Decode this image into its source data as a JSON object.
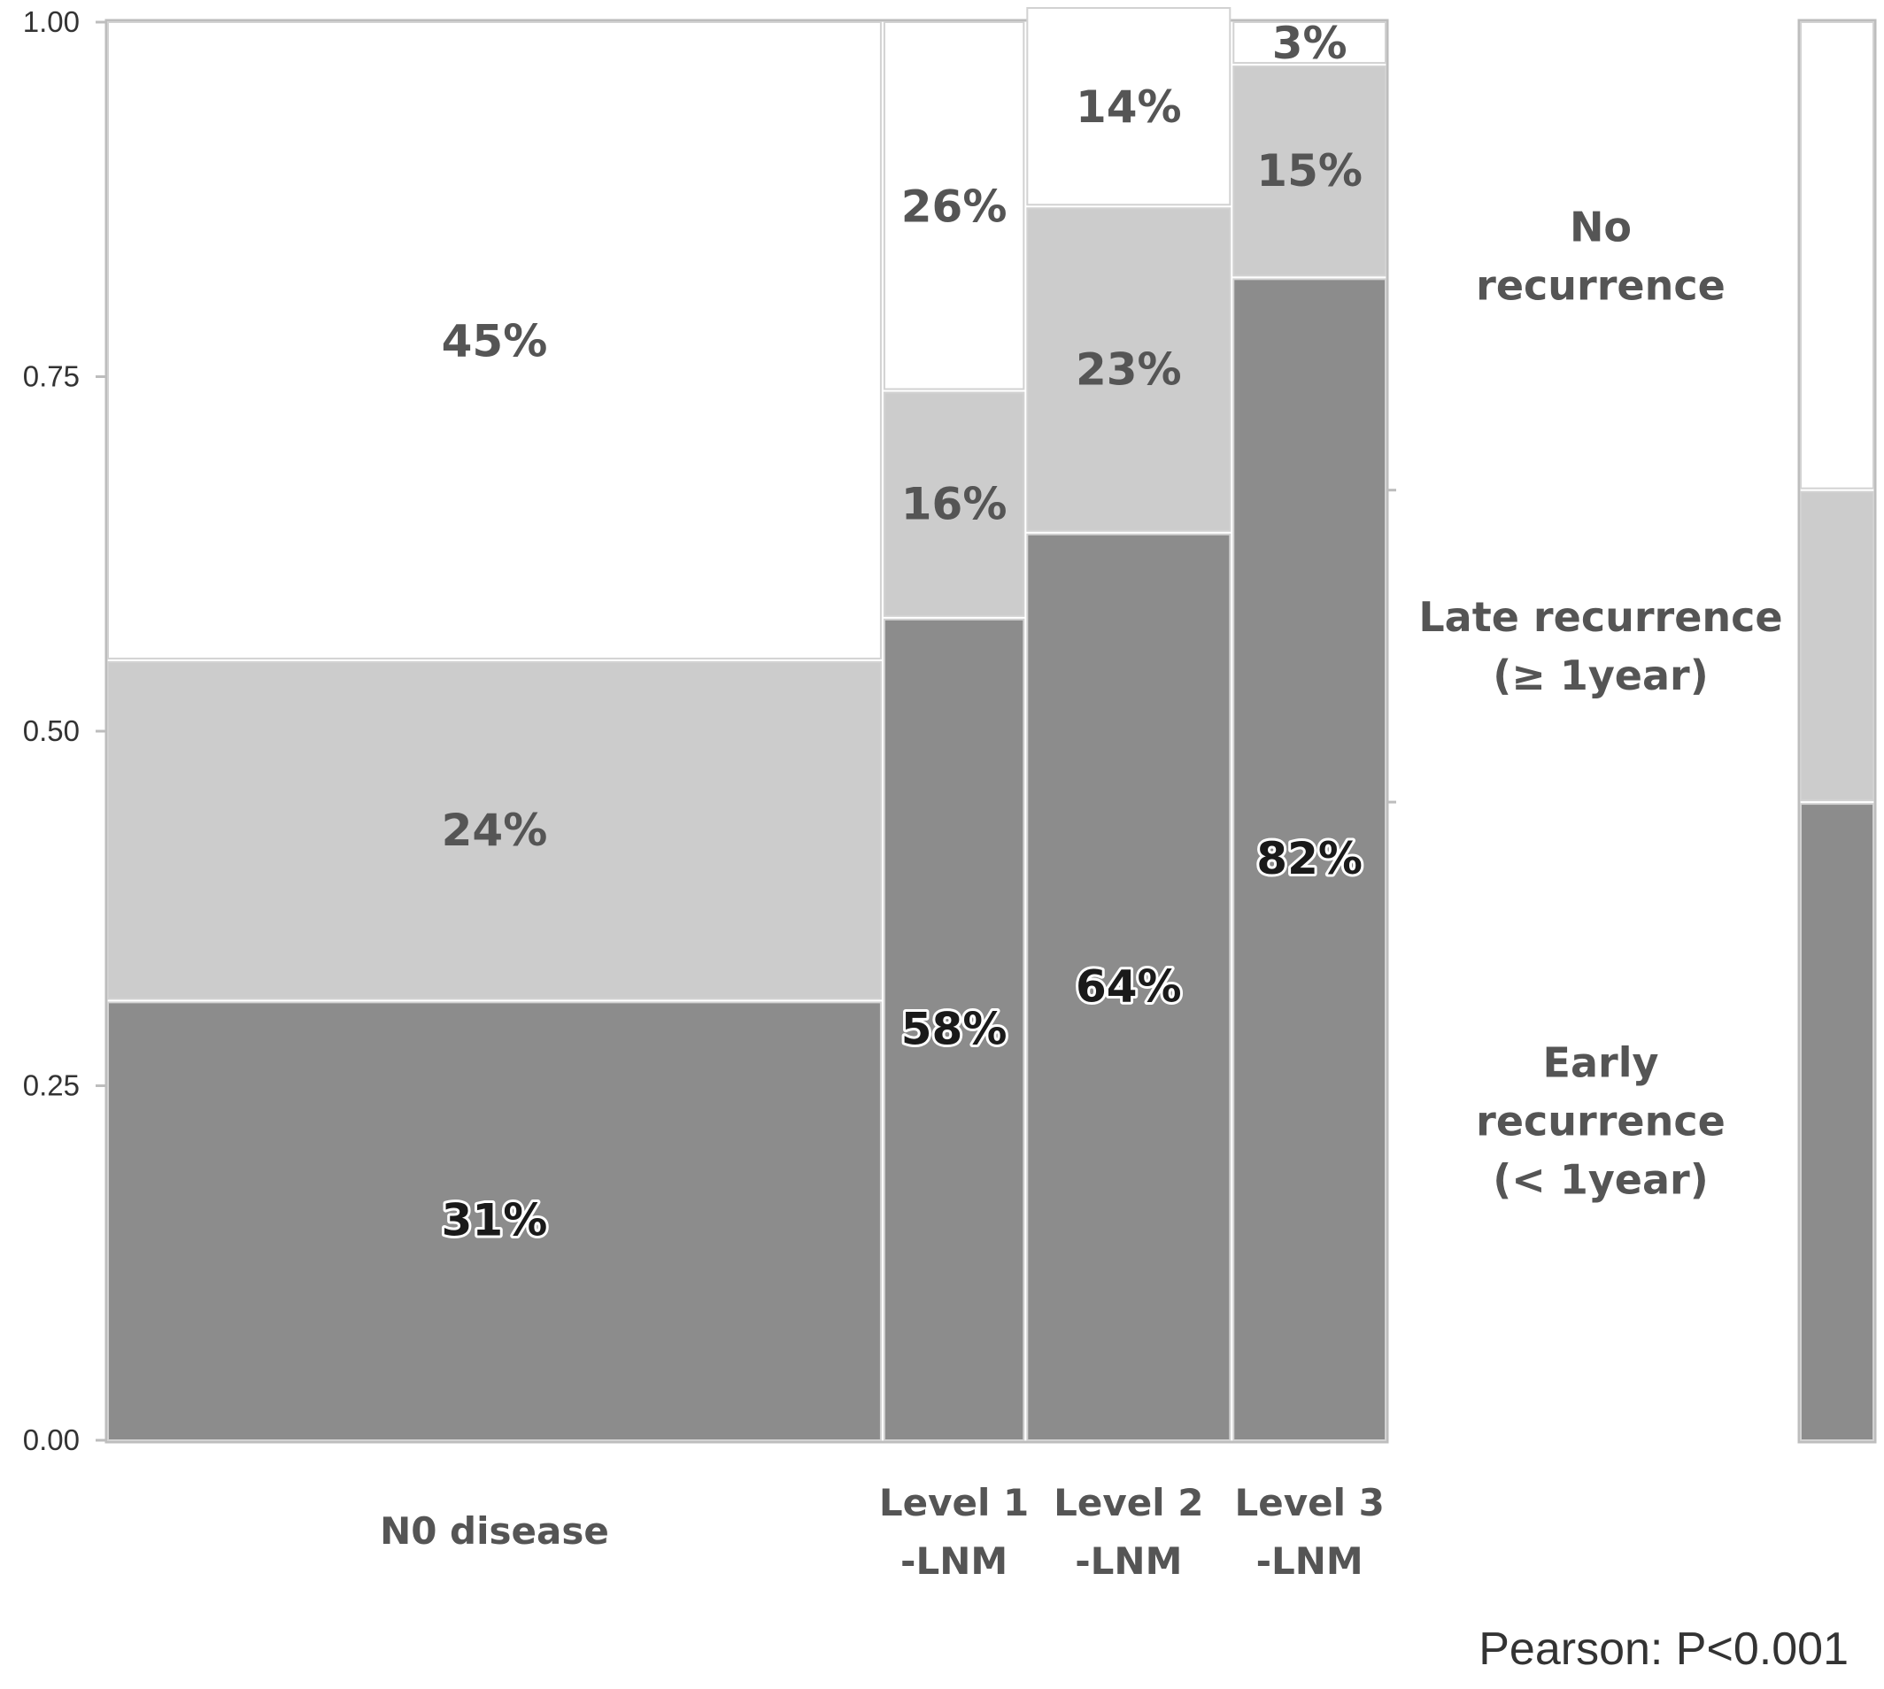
{
  "chart_data": {
    "type": "mosaic",
    "title": "",
    "ylim": [
      0,
      1
    ],
    "y_ticks": [
      "0.00",
      "0.25",
      "0.50",
      "0.75",
      "1.00"
    ],
    "y_tick_values": [
      0,
      0.25,
      0.5,
      0.75,
      1.0
    ],
    "categories": [
      {
        "label_lines": [
          "N0 disease"
        ],
        "share": 0.61
      },
      {
        "label_lines": [
          "Level 1",
          "-LNM"
        ],
        "share": 0.11
      },
      {
        "label_lines": [
          "Level 2",
          "-LNM"
        ],
        "share": 0.16
      },
      {
        "label_lines": [
          "Level 3",
          "-LNM"
        ],
        "share": 0.12
      }
    ],
    "series": [
      {
        "name_lines": [
          "Early",
          "recurrence",
          "(< 1year)"
        ],
        "color": "#8c8c8c",
        "values": [
          0.31,
          0.58,
          0.64,
          0.82
        ],
        "labels": [
          "31%",
          "58%",
          "64%",
          "82%"
        ]
      },
      {
        "name_lines": [
          "Late recurrence",
          "(≥ 1year)"
        ],
        "color": "#cccccc",
        "values": [
          0.24,
          0.16,
          0.23,
          0.15
        ],
        "labels": [
          "24%",
          "16%",
          "23%",
          "15%"
        ]
      },
      {
        "name_lines": [
          "No",
          "recurrence"
        ],
        "color": "#ffffff",
        "values": [
          0.45,
          0.26,
          0.14,
          0.03
        ],
        "labels": [
          "45%",
          "26%",
          "14%",
          "3%"
        ]
      }
    ],
    "overall_proportions": [
      0.45,
      0.22,
      0.33
    ],
    "annotation": "Pearson: P<0.001"
  }
}
